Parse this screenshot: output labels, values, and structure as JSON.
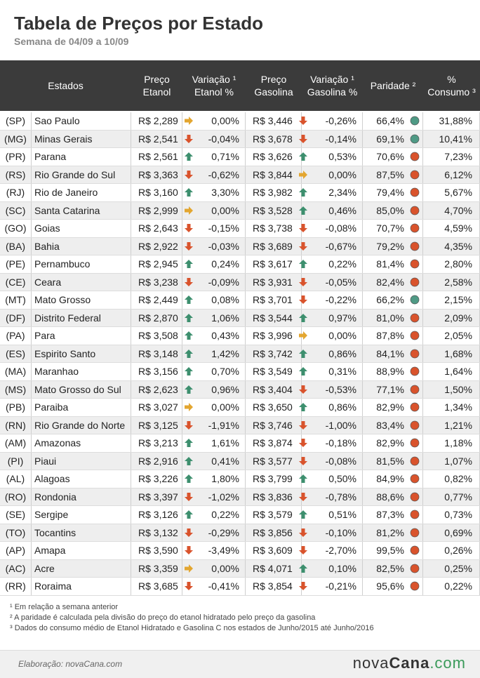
{
  "header": {
    "title": "Tabela de Preços por Estado",
    "subtitle": "Semana de 04/09 a 10/09"
  },
  "table": {
    "columns": [
      [
        "Estados"
      ],
      [
        "Preço",
        "Etanol"
      ],
      [
        "Variação ¹",
        "Etanol %"
      ],
      [
        "Preço",
        "Gasolina"
      ],
      [
        "Variação ¹",
        "Gasolina %"
      ],
      [
        "Paridade ²"
      ],
      [
        "%",
        "Consumo ³"
      ]
    ],
    "rows": [
      [
        "(SP)",
        "Sao Paulo",
        "R$ 2,289",
        "0,00%",
        "R$ 3,446",
        "-0,26%",
        "66,4%",
        "31,88%"
      ],
      [
        "(MG)",
        "Minas Gerais",
        "R$ 2,541",
        "-0,04%",
        "R$ 3,678",
        "-0,14%",
        "69,1%",
        "10,41%"
      ],
      [
        "(PR)",
        "Parana",
        "R$ 2,561",
        "0,71%",
        "R$ 3,626",
        "0,53%",
        "70,6%",
        "7,23%"
      ],
      [
        "(RS)",
        "Rio Grande do Sul",
        "R$ 3,363",
        "-0,62%",
        "R$ 3,844",
        "0,00%",
        "87,5%",
        "6,12%"
      ],
      [
        "(RJ)",
        "Rio de Janeiro",
        "R$ 3,160",
        "3,30%",
        "R$ 3,982",
        "2,34%",
        "79,4%",
        "5,67%"
      ],
      [
        "(SC)",
        "Santa Catarina",
        "R$ 2,999",
        "0,00%",
        "R$ 3,528",
        "0,46%",
        "85,0%",
        "4,70%"
      ],
      [
        "(GO)",
        "Goias",
        "R$ 2,643",
        "-0,15%",
        "R$ 3,738",
        "-0,08%",
        "70,7%",
        "4,59%"
      ],
      [
        "(BA)",
        "Bahia",
        "R$ 2,922",
        "-0,03%",
        "R$ 3,689",
        "-0,67%",
        "79,2%",
        "4,35%"
      ],
      [
        "(PE)",
        "Pernambuco",
        "R$ 2,945",
        "0,24%",
        "R$ 3,617",
        "0,22%",
        "81,4%",
        "2,80%"
      ],
      [
        "(CE)",
        "Ceara",
        "R$ 3,238",
        "-0,09%",
        "R$ 3,931",
        "-0,05%",
        "82,4%",
        "2,58%"
      ],
      [
        "(MT)",
        "Mato Grosso",
        "R$ 2,449",
        "0,08%",
        "R$ 3,701",
        "-0,22%",
        "66,2%",
        "2,15%"
      ],
      [
        "(DF)",
        "Distrito Federal",
        "R$ 2,870",
        "1,06%",
        "R$ 3,544",
        "0,97%",
        "81,0%",
        "2,09%"
      ],
      [
        "(PA)",
        "Para",
        "R$ 3,508",
        "0,43%",
        "R$ 3,996",
        "0,00%",
        "87,8%",
        "2,05%"
      ],
      [
        "(ES)",
        "Espirito Santo",
        "R$ 3,148",
        "1,42%",
        "R$ 3,742",
        "0,86%",
        "84,1%",
        "1,68%"
      ],
      [
        "(MA)",
        "Maranhao",
        "R$ 3,156",
        "0,70%",
        "R$ 3,549",
        "0,31%",
        "88,9%",
        "1,64%"
      ],
      [
        "(MS)",
        "Mato Grosso do Sul",
        "R$ 2,623",
        "0,96%",
        "R$ 3,404",
        "-0,53%",
        "77,1%",
        "1,50%"
      ],
      [
        "(PB)",
        "Paraiba",
        "R$ 3,027",
        "0,00%",
        "R$ 3,650",
        "0,86%",
        "82,9%",
        "1,34%"
      ],
      [
        "(RN)",
        "Rio Grande do Norte",
        "R$ 3,125",
        "-1,91%",
        "R$ 3,746",
        "-1,00%",
        "83,4%",
        "1,21%"
      ],
      [
        "(AM)",
        "Amazonas",
        "R$ 3,213",
        "1,61%",
        "R$ 3,874",
        "-0,18%",
        "82,9%",
        "1,18%"
      ],
      [
        "(PI)",
        "Piaui",
        "R$ 2,916",
        "0,41%",
        "R$ 3,577",
        "-0,08%",
        "81,5%",
        "1,07%"
      ],
      [
        "(AL)",
        "Alagoas",
        "R$ 3,226",
        "1,80%",
        "R$ 3,799",
        "0,50%",
        "84,9%",
        "0,82%"
      ],
      [
        "(RO)",
        "Rondonia",
        "R$ 3,397",
        "-1,02%",
        "R$ 3,836",
        "-0,78%",
        "88,6%",
        "0,77%"
      ],
      [
        "(SE)",
        "Sergipe",
        "R$ 3,126",
        "0,22%",
        "R$ 3,579",
        "0,51%",
        "87,3%",
        "0,73%"
      ],
      [
        "(TO)",
        "Tocantins",
        "R$ 3,132",
        "-0,29%",
        "R$ 3,856",
        "-0,10%",
        "81,2%",
        "0,69%"
      ],
      [
        "(AP)",
        "Amapa",
        "R$ 3,590",
        "-3,49%",
        "R$ 3,609",
        "-2,70%",
        "99,5%",
        "0,26%"
      ],
      [
        "(AC)",
        "Acre",
        "R$ 3,359",
        "0,00%",
        "R$ 4,071",
        "0,10%",
        "82,5%",
        "0,25%"
      ],
      [
        "(RR)",
        "Roraima",
        "R$ 3,685",
        "-0,41%",
        "R$ 3,854",
        "-0,21%",
        "95,6%",
        "0,22%"
      ]
    ]
  },
  "footnotes": [
    "¹ Em relação a semana anterior",
    "² A paridade é calculada pela divisão do preço do etanol hidratado pelo preço da gasolina",
    "³ Dados do consumo médio de Etanol Hidratado e Gasolina C nos estados de Junho/2015 até Junho/2016"
  ],
  "footer": {
    "credit": "Elaboração: novaCana.com",
    "logo_left": "nova",
    "logo_mid": "Cana",
    "logo_right": ".com"
  }
}
